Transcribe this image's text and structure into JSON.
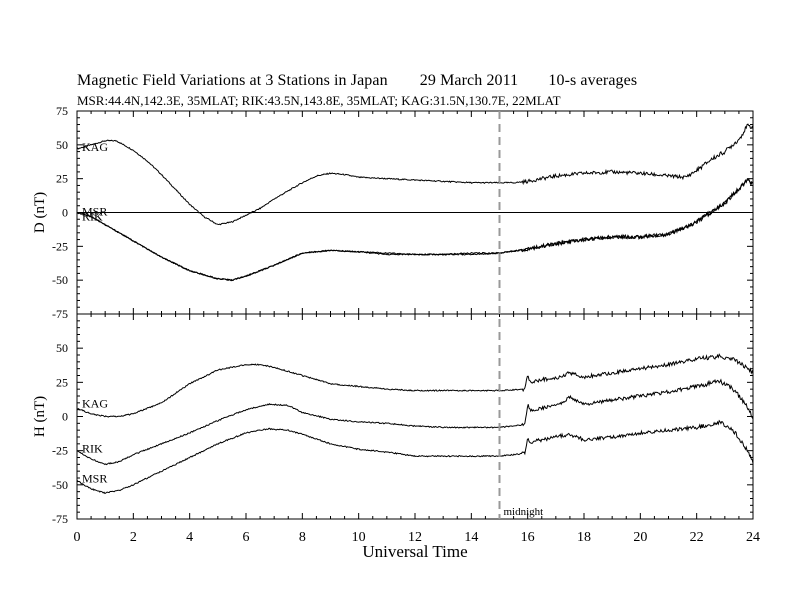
{
  "chart_data": {
    "type": "line",
    "title": "Magnetic Field Variations at 3 Stations in Japan",
    "date": "29  March   2011",
    "averaging": "10-s averages",
    "subtitle": "MSR:44.4N,142.3E, 35MLAT;  RIK:43.5N,143.8E, 35MLAT;  KAG:31.5N,130.7E, 22MLAT",
    "xlabel": "Universal Time",
    "xlim": [
      0,
      24
    ],
    "xticks": [
      "0",
      "2",
      "4",
      "6",
      "8",
      "10",
      "12",
      "14",
      "16",
      "18",
      "20",
      "22",
      "24"
    ],
    "marker": {
      "x": 15,
      "label": "midnight",
      "style": "dashed",
      "color": "#999999"
    },
    "panels": [
      {
        "ylabel": "D (nT)",
        "ylim": [
          -75,
          75
        ],
        "yticks": [
          "75",
          "50",
          "25",
          "0",
          "-25",
          "-50",
          "-75"
        ],
        "zero_line": true,
        "series": [
          {
            "name": "KAG",
            "x": [
              0,
              0.5,
              1,
              1.4,
              2,
              2.5,
              3,
              3.5,
              4,
              4.5,
              5,
              5.5,
              6,
              6.5,
              7,
              7.5,
              8,
              8.5,
              9,
              9.5,
              10,
              11,
              12,
              13,
              14,
              15,
              15.5,
              16,
              17,
              18,
              19,
              20,
              21,
              21.6,
              22,
              22.5,
              23,
              23.5,
              23.8,
              24
            ],
            "y": [
              47,
              50,
              53,
              53,
              46,
              38,
              28,
              17,
              6,
              -3,
              -9,
              -7,
              -2,
              3,
              10,
              16,
              22,
              27,
              29,
              28,
              26,
              25,
              24,
              23,
              22,
              22,
              22,
              23,
              27,
              29,
              30,
              29,
              27,
              26,
              31,
              39,
              45,
              54,
              64,
              63
            ]
          },
          {
            "name": "RIK",
            "x": [
              0,
              0.5,
              1,
              2,
              3,
              4,
              5,
              5.5,
              6,
              7,
              8,
              9,
              10,
              11,
              12,
              13,
              14,
              15,
              16,
              17,
              18,
              19,
              20,
              21,
              21.5,
              22,
              23,
              23.8,
              24
            ],
            "y": [
              0,
              -3,
              -9,
              -21,
              -33,
              -43,
              -49,
              -50,
              -47,
              -39,
              -30,
              -28,
              -29,
              -31,
              -31,
              -31,
              -30,
              -30,
              -27,
              -23,
              -20,
              -18,
              -18,
              -16,
              -12,
              -7,
              7,
              24,
              22
            ]
          },
          {
            "name": "MSR",
            "x": [
              0,
              0.5,
              1,
              2,
              3,
              4,
              5,
              5.5,
              6,
              7,
              8,
              9,
              10,
              11,
              12,
              13,
              14,
              15,
              16,
              17,
              18,
              19,
              20,
              21,
              21.5,
              22,
              23,
              23.8,
              24
            ],
            "y": [
              0,
              -3,
              -9,
              -21,
              -33,
              -43,
              -49,
              -50,
              -47,
              -39,
              -30,
              -28,
              -29,
              -30,
              -31,
              -31,
              -31,
              -30,
              -27,
              -23,
              -20,
              -18,
              -18,
              -16,
              -12,
              -7,
              7,
              24,
              21
            ]
          }
        ]
      },
      {
        "ylabel": "H (nT)",
        "ylim": [
          -75,
          75
        ],
        "yticks": [
          "75",
          "50",
          "25",
          "0",
          "-25",
          "-50",
          "-75"
        ],
        "zero_line": false,
        "series": [
          {
            "name": "KAG",
            "x": [
              0,
              0.5,
              1,
              1.5,
              2,
              3,
              4,
              5,
              6,
              6.5,
              7,
              8,
              9,
              10,
              11,
              12,
              13,
              14,
              15,
              15.9,
              16,
              16.1,
              16.5,
              17,
              17.5,
              18,
              19,
              20,
              21,
              22,
              22.8,
              23.3,
              23.8,
              24
            ],
            "y": [
              6,
              2,
              0,
              0,
              2,
              10,
              24,
              34,
              38,
              38,
              36,
              30,
              24,
              22,
              20,
              19,
              19,
              19,
              19,
              20,
              30,
              25,
              27,
              28,
              32,
              29,
              32,
              35,
              38,
              42,
              44,
              42,
              35,
              32
            ]
          },
          {
            "name": "RIK",
            "x": [
              0,
              0.5,
              1,
              1.5,
              2,
              3,
              4,
              5,
              6,
              6.8,
              7.5,
              8,
              9,
              10,
              11,
              12,
              13,
              14,
              15,
              15.9,
              16,
              16.1,
              16.5,
              17,
              17.5,
              18,
              19,
              20,
              21,
              22,
              22.8,
              23.3,
              23.8,
              24
            ],
            "y": [
              -25,
              -31,
              -35,
              -33,
              -28,
              -20,
              -12,
              -3,
              5,
              9,
              8,
              3,
              -2,
              -4,
              -5,
              -7,
              -8,
              -8,
              -8,
              -6,
              9,
              4,
              6,
              8,
              14,
              9,
              12,
              15,
              18,
              22,
              26,
              20,
              7,
              -1
            ]
          },
          {
            "name": "MSR",
            "x": [
              0,
              0.5,
              1,
              1.5,
              2,
              3,
              4,
              5,
              6,
              6.8,
              7.5,
              8,
              9,
              10,
              11,
              12,
              13,
              14,
              15,
              15.9,
              16,
              16.1,
              16.5,
              17,
              17.5,
              18,
              19,
              20,
              21,
              22,
              22.8,
              23.3,
              23.8,
              24
            ],
            "y": [
              -47,
              -53,
              -56,
              -54,
              -50,
              -40,
              -30,
              -20,
              -12,
              -9,
              -10,
              -13,
              -20,
              -24,
              -26,
              -29,
              -29,
              -29,
              -29,
              -27,
              -15,
              -19,
              -17,
              -15,
              -13,
              -17,
              -15,
              -12,
              -10,
              -8,
              -4,
              -10,
              -25,
              -34
            ]
          }
        ]
      }
    ]
  }
}
